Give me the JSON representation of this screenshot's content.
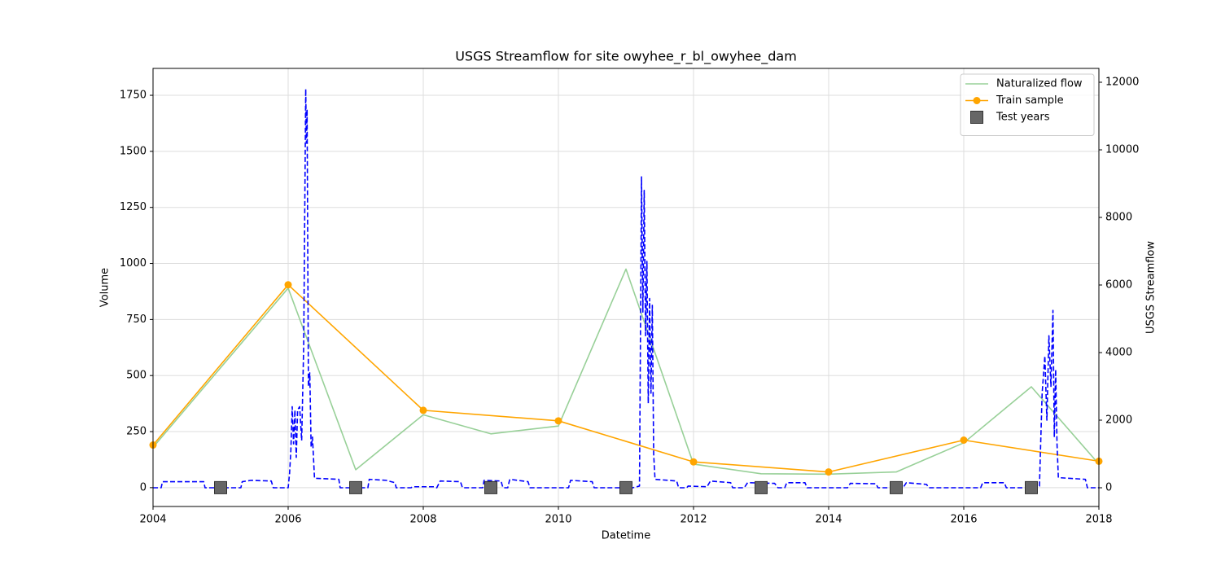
{
  "chart_data": {
    "type": "line",
    "title": "USGS Streamflow for site owyhee_r_bl_owyhee_dam",
    "x_label": "Datetime",
    "y_label": "Volume",
    "y2_label": "USGS Streamflow",
    "xlim": [
      2004,
      2018
    ],
    "xticks": [
      2004,
      2006,
      2008,
      2010,
      2012,
      2014,
      2016,
      2018
    ],
    "ylim": [
      -84,
      1870
    ],
    "yticks": [
      0,
      250,
      500,
      750,
      1000,
      1250,
      1500,
      1750
    ],
    "y2lim": [
      -554,
      12410
    ],
    "y2ticks": [
      0,
      2000,
      4000,
      6000,
      8000,
      10000,
      12000
    ],
    "grid": true,
    "legend": "upper right",
    "series": [
      {
        "name": "Naturalized flow",
        "style": "line",
        "color": "#98d098",
        "x": [
          2004,
          2005,
          2006,
          2007,
          2008,
          2009,
          2010,
          2011,
          2012,
          2013,
          2014,
          2015,
          2016,
          2017,
          2018
        ],
        "values": [
          180,
          535,
          890,
          80,
          325,
          240,
          275,
          975,
          105,
          62,
          60,
          70,
          200,
          450,
          105
        ]
      },
      {
        "name": "Train sample",
        "style": "line-marker",
        "color": "#ffa500",
        "x": [
          2004,
          2006,
          2008,
          2010,
          2012,
          2014,
          2016,
          2018
        ],
        "values": [
          190,
          905,
          345,
          298,
          115,
          70,
          212,
          118
        ]
      },
      {
        "name": "Test years",
        "style": "marker",
        "color": "#666666",
        "x": [
          2005,
          2007,
          2009,
          2011,
          2013,
          2015,
          2017
        ],
        "values": [
          0,
          0,
          0,
          0,
          0,
          0,
          0
        ]
      },
      {
        "style": "dashed",
        "color": "#0000ff",
        "axis": "y2",
        "x": [
          2004.0,
          2004.12,
          2004.14,
          2004.75,
          2004.77,
          2005.3,
          2005.32,
          2005.45,
          2005.75,
          2005.78,
          2006.0,
          2006.02,
          2006.04,
          2006.06,
          2006.08,
          2006.1,
          2006.12,
          2006.14,
          2006.17,
          2006.2,
          2006.23,
          2006.26,
          2006.27,
          2006.28,
          2006.3,
          2006.32,
          2006.34,
          2006.36,
          2006.39,
          2006.75,
          2006.77,
          2007.18,
          2007.2,
          2007.45,
          2007.58,
          2007.6,
          2007.82,
          2007.84,
          2008.16,
          2008.2,
          2008.25,
          2008.55,
          2008.58,
          2008.88,
          2008.9,
          2009.15,
          2009.18,
          2009.25,
          2009.28,
          2009.55,
          2009.58,
          2010.15,
          2010.18,
          2010.5,
          2010.53,
          2011.1,
          2011.2,
          2011.23,
          2011.25,
          2011.27,
          2011.29,
          2011.31,
          2011.33,
          2011.35,
          2011.37,
          2011.39,
          2011.41,
          2011.43,
          2011.75,
          2011.78,
          2011.9,
          2011.92,
          2012.2,
          2012.25,
          2012.55,
          2012.58,
          2012.75,
          2012.8,
          2013.2,
          2013.25,
          2013.35,
          2013.38,
          2013.65,
          2013.68,
          2014.28,
          2014.32,
          2014.7,
          2014.73,
          2015.1,
          2015.15,
          2015.45,
          2015.48,
          2016.25,
          2016.28,
          2016.6,
          2016.63,
          2017.0,
          2017.12,
          2017.16,
          2017.2,
          2017.23,
          2017.26,
          2017.29,
          2017.32,
          2017.34,
          2017.36,
          2017.38,
          2017.4,
          2017.8,
          2017.83,
          2018.0
        ],
        "values": [
          0,
          0,
          180,
          180,
          0,
          0,
          180,
          220,
          200,
          0,
          0,
          400,
          1100,
          2400,
          1300,
          2300,
          900,
          2300,
          2400,
          1400,
          4200,
          11800,
          10200,
          11200,
          3000,
          3400,
          1200,
          1500,
          280,
          250,
          0,
          0,
          250,
          220,
          150,
          0,
          0,
          30,
          30,
          0,
          200,
          180,
          0,
          0,
          220,
          200,
          0,
          0,
          250,
          180,
          0,
          0,
          220,
          180,
          0,
          0,
          50,
          9200,
          5200,
          8800,
          4500,
          6700,
          2500,
          5600,
          2800,
          5400,
          1000,
          250,
          200,
          0,
          0,
          50,
          30,
          200,
          150,
          0,
          0,
          150,
          130,
          0,
          0,
          150,
          150,
          0,
          0,
          130,
          120,
          0,
          0,
          150,
          100,
          0,
          0,
          150,
          150,
          0,
          0,
          50,
          2800,
          3900,
          2000,
          4500,
          3000,
          5250,
          1500,
          3500,
          1300,
          300,
          250,
          0,
          0
        ]
      }
    ]
  }
}
